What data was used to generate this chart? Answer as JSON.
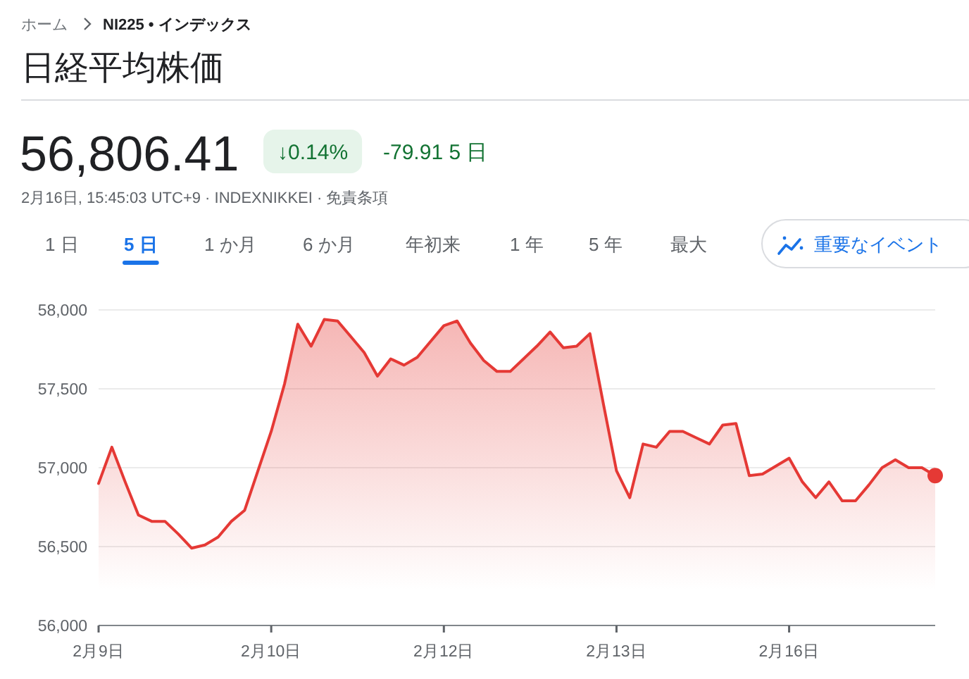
{
  "chart_data": {
    "type": "area",
    "title": "日経平均株価",
    "annotations": [
      "ホーム",
      "NI225 • インデックス",
      "56,806.41",
      "↓0.14%",
      "-79.91 5 日",
      "2月16日, 15:45:03 UTC+9 · INDEXNIKKEI · 免責条項",
      "1 日",
      "5 日",
      "1 か月",
      "6 か月",
      "年初来",
      "1 年",
      "5 年",
      "最大",
      "重要なイベント"
    ],
    "categories": [
      "2月9日",
      null,
      null,
      null,
      null,
      null,
      null,
      null,
      null,
      null,
      null,
      null,
      null,
      "2月10日",
      null,
      null,
      null,
      null,
      null,
      null,
      null,
      null,
      null,
      null,
      null,
      null,
      "2月12日",
      null,
      null,
      null,
      null,
      null,
      null,
      null,
      null,
      null,
      null,
      null,
      null,
      "2月13日",
      null,
      null,
      null,
      null,
      null,
      null,
      null,
      null,
      null,
      null,
      null,
      null,
      "2月16日",
      null,
      null,
      null,
      null,
      null,
      null,
      null,
      null,
      null,
      null,
      null
    ],
    "series": [
      {
        "color": "#e53935",
        "values": [
          56900,
          57130,
          56910,
          56700,
          56660,
          56660,
          56580,
          56490,
          56510,
          56560,
          56660,
          56730,
          56980,
          57230,
          57530,
          57910,
          57770,
          57940,
          57930,
          57830,
          57730,
          57580,
          57690,
          57650,
          57700,
          57800,
          57900,
          57930,
          57790,
          57680,
          57610,
          57610,
          57690,
          57770,
          57860,
          57760,
          57770,
          57850,
          57410,
          56980,
          56810,
          57150,
          57130,
          57230,
          57230,
          57190,
          57150,
          57270,
          57280,
          56950,
          56960,
          57010,
          57060,
          56910,
          56810,
          56910,
          56790,
          56790,
          56890,
          57000,
          57050,
          57000,
          57000,
          56950
        ]
      },
      {
        "type": "scatter",
        "color": "#e53935",
        "values": [
          null,
          null,
          null,
          null,
          null,
          null,
          null,
          null,
          null,
          null,
          null,
          null,
          null,
          null,
          null,
          null,
          null,
          null,
          null,
          null,
          null,
          null,
          null,
          null,
          null,
          null,
          null,
          null,
          null,
          null,
          null,
          null,
          null,
          null,
          null,
          null,
          null,
          null,
          null,
          null,
          null,
          null,
          null,
          null,
          null,
          null,
          null,
          null,
          null,
          null,
          null,
          null,
          null,
          null,
          null,
          null,
          null,
          null,
          null,
          null,
          null,
          null,
          null,
          56950
        ]
      }
    ],
    "ylim": [
      56000,
      58000
    ],
    "yticks": [
      {
        "value": 56000,
        "label": "56,000"
      },
      {
        "value": 56500,
        "label": "56,500"
      },
      {
        "value": 57000,
        "label": "57,000"
      },
      {
        "value": 57500,
        "label": "57,500"
      },
      {
        "value": 58000,
        "label": "58,000"
      }
    ],
    "grid": "y"
  }
}
